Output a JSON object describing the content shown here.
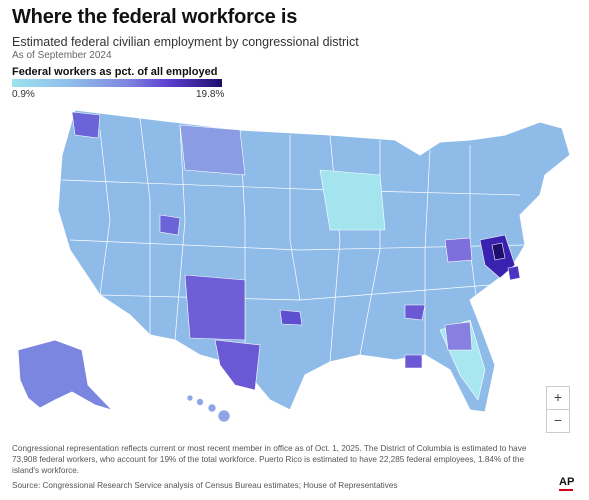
{
  "header": {
    "title": "Where the federal workforce is",
    "subtitle": "Estimated federal civilian employment by congressional district",
    "as_of": "As of September 2024"
  },
  "legend": {
    "title": "Federal workers as pct. of all employed",
    "min_label": "0.9%",
    "max_label": "19.8%",
    "color_low": "#9be3ee",
    "color_high": "#1e0e6b"
  },
  "map": {
    "type": "choropleth",
    "region": "United States congressional districts",
    "highlighted_areas": [
      "Virginia",
      "Maryland",
      "District of Columbia",
      "New Mexico",
      "Texas",
      "Alaska",
      "Washington",
      "Oklahoma",
      "Ohio",
      "Georgia"
    ]
  },
  "controls": {
    "zoom_in": "+",
    "zoom_out": "−"
  },
  "footer": {
    "note": "Congressional representation reflects current or most recent member in office as of Oct. 1, 2025. The District of Columbia is estimated to have 73,908 federal workers, who account for 19% of the total workforce. Puerto Rico is estimated to have 22,285 federal employees, 1.84% of the island's workforce.",
    "source": "Source: Congressional Research Service analysis of Census Bureau estimates; House of Representatives",
    "logo": "AP"
  }
}
